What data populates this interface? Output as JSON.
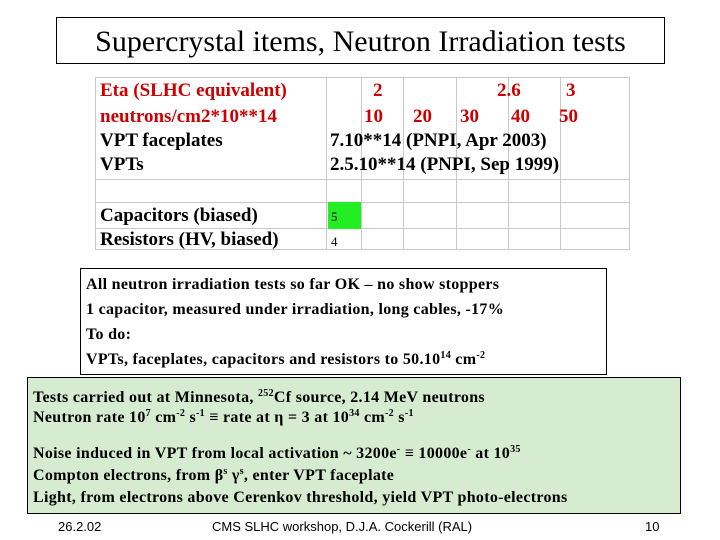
{
  "title": "Supercrystal items, Neutron Irradiation tests",
  "table": {
    "eta_label": "Eta (SLHC equivalent)",
    "eta_values": [
      "2",
      "2.6",
      "3"
    ],
    "neutron_label": "neutrons/cm2*10**14",
    "neutron_values": [
      "10",
      "20",
      "30",
      "40",
      "50"
    ],
    "vpt_faceplates_label": "VPT faceplates",
    "vpt_faceplates_value": "7.10**14 (PNPI, Apr 2003)",
    "vpts_label": "VPTs",
    "vpts_value": "2.5.10**14 (PNPI, Sep 1999)",
    "capacitors_label": "Capacitors (biased)",
    "capacitors_value": "5",
    "resistors_label": "Resistors (HV, biased)",
    "resistors_value": "4"
  },
  "box1": {
    "line1": "All neutron irradiation tests so far OK – no show stoppers",
    "line2": "1 capacitor, measured under irradiation, long cables,   -17%",
    "line3": "To do:",
    "line4_pre": "VPTs, faceplates, capacitors and resistors to 50.10",
    "line4_sup1": "14",
    "line4_mid": " cm",
    "line4_sup2": "-2"
  },
  "box2": {
    "l1_pre": "Tests carried out at Minnesota, ",
    "l1_sup": "252",
    "l1_post": "Cf source, 2.14 MeV neutrons",
    "l2_a": "Neutron rate 10",
    "l2_sup1": "7",
    "l2_b": " cm",
    "l2_sup2": "-2",
    "l2_c": " s",
    "l2_sup3": "-1",
    "l2_d": "   ≡  rate at η = 3 at 10",
    "l2_sup4": "34",
    "l2_e": " cm",
    "l2_sup5": "-2",
    "l2_f": " s",
    "l2_sup6": "-1",
    "l3_a": "Noise induced in VPT from local activation ~ 3200e",
    "l3_sup1": "-",
    "l3_b": " ≡ 10000e",
    "l3_sup2": "-",
    "l3_c": " at 10",
    "l3_sup3": "35",
    "l4_a": "Compton electrons, from β",
    "l4_sup1": "s",
    "l4_b": " γ",
    "l4_sup2": "s",
    "l4_c": ", enter VPT faceplate",
    "l5": "Light, from electrons above Cerenkov threshold, yield VPT photo-electrons"
  },
  "footer": {
    "date": "26.2.02",
    "center": "CMS SLHC workshop, D.J.A. Cockerill (RAL)",
    "page": "10"
  }
}
